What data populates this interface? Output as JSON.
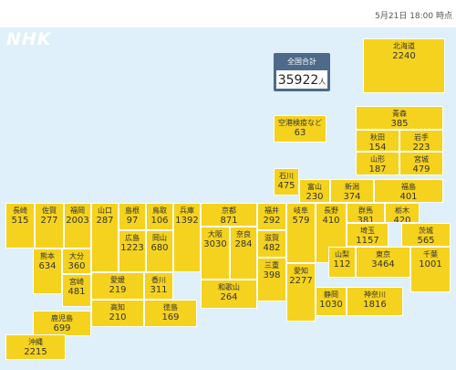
{
  "header": {
    "datetime": "5月21日 18:00 時点"
  },
  "logo": "NHK",
  "total": {
    "title": "全国合計",
    "value": "35922",
    "unit": "人"
  },
  "colors": {
    "sea": "#dff0fa",
    "prefecture": "#f5d21e",
    "total_box": "#4d6a8a"
  },
  "prefectures": [
    {
      "id": "hokkaido",
      "name": "北海道",
      "count": "2240"
    },
    {
      "id": "aomori",
      "name": "青森",
      "count": "385"
    },
    {
      "id": "akita",
      "name": "秋田",
      "count": "154"
    },
    {
      "id": "iwate",
      "name": "岩手",
      "count": "223"
    },
    {
      "id": "yamagata",
      "name": "山形",
      "count": "187"
    },
    {
      "id": "miyagi",
      "name": "宮城",
      "count": "479"
    },
    {
      "id": "quarantine",
      "name": "空港検疫など",
      "count": "63"
    },
    {
      "id": "ishikawa",
      "name": "石川",
      "count": "475"
    },
    {
      "id": "toyama",
      "name": "富山",
      "count": "230"
    },
    {
      "id": "niigata",
      "name": "新潟",
      "count": "374"
    },
    {
      "id": "fukushima",
      "name": "福島",
      "count": "401"
    },
    {
      "id": "nagasaki",
      "name": "長崎",
      "count": "515"
    },
    {
      "id": "saga",
      "name": "佐賀",
      "count": "277"
    },
    {
      "id": "fukuoka",
      "name": "福岡",
      "count": "2003"
    },
    {
      "id": "yamaguchi",
      "name": "山口",
      "count": "287"
    },
    {
      "id": "shimane",
      "name": "島根",
      "count": "97"
    },
    {
      "id": "tottori",
      "name": "鳥取",
      "count": "106"
    },
    {
      "id": "hyogo",
      "name": "兵庫",
      "count": "1392"
    },
    {
      "id": "kyoto",
      "name": "京都",
      "count": "871"
    },
    {
      "id": "fukui",
      "name": "福井",
      "count": "292"
    },
    {
      "id": "gifu",
      "name": "岐阜",
      "count": "579"
    },
    {
      "id": "nagano",
      "name": "長野",
      "count": "410"
    },
    {
      "id": "gunma",
      "name": "群馬",
      "count": "381"
    },
    {
      "id": "tochigi",
      "name": "栃木",
      "count": "420"
    },
    {
      "id": "hiroshima",
      "name": "広島",
      "count": "1223"
    },
    {
      "id": "okayama",
      "name": "岡山",
      "count": "680"
    },
    {
      "id": "shiga",
      "name": "滋賀",
      "count": "482"
    },
    {
      "id": "saitama",
      "name": "埼玉",
      "count": "1157"
    },
    {
      "id": "ibaraki",
      "name": "茨城",
      "count": "565"
    },
    {
      "id": "osaka",
      "name": "大阪",
      "count": "3030"
    },
    {
      "id": "nara",
      "name": "奈良",
      "count": "284"
    },
    {
      "id": "kumamoto",
      "name": "熊本",
      "count": "634"
    },
    {
      "id": "oita",
      "name": "大分",
      "count": "360"
    },
    {
      "id": "miyazaki",
      "name": "宮崎",
      "count": "481"
    },
    {
      "id": "aichi",
      "name": "愛知",
      "count": "2277"
    },
    {
      "id": "yamanashi",
      "name": "山梨",
      "count": "112"
    },
    {
      "id": "tokyo",
      "name": "東京",
      "count": "3464"
    },
    {
      "id": "chiba",
      "name": "千葉",
      "count": "1001"
    },
    {
      "id": "ehime",
      "name": "愛媛",
      "count": "219"
    },
    {
      "id": "kagawa",
      "name": "香川",
      "count": "311"
    },
    {
      "id": "mie",
      "name": "三重",
      "count": "398"
    },
    {
      "id": "wakayama",
      "name": "和歌山",
      "count": "264"
    },
    {
      "id": "kochi",
      "name": "高知",
      "count": "210"
    },
    {
      "id": "tokushima",
      "name": "徳島",
      "count": "169"
    },
    {
      "id": "shizuoka",
      "name": "静岡",
      "count": "1030"
    },
    {
      "id": "kanagawa",
      "name": "神奈川",
      "count": "1816"
    },
    {
      "id": "kagoshima",
      "name": "鹿児島",
      "count": "699"
    },
    {
      "id": "okinawa",
      "name": "沖縄",
      "count": "2215"
    }
  ]
}
